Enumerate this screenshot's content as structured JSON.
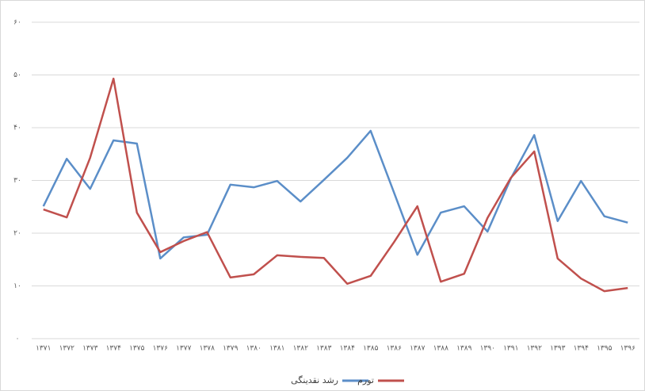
{
  "chart_data": {
    "type": "line",
    "categories": [
      "۱۳۷۱",
      "۱۳۷۲",
      "۱۳۷۳",
      "۱۳۷۴",
      "۱۳۷۵",
      "۱۳۷۶",
      "۱۳۷۷",
      "۱۳۷۸",
      "۱۳۷۹",
      "۱۳۸۰",
      "۱۳۸۱",
      "۱۳۸۲",
      "۱۳۸۳",
      "۱۳۸۴",
      "۱۳۸۵",
      "۱۳۸۶",
      "۱۳۸۷",
      "۱۳۸۸",
      "۱۳۸۹",
      "۱۳۹۰",
      "۱۳۹۱",
      "۱۳۹۲",
      "۱۳۹۳",
      "۱۳۹۴",
      "۱۳۹۵",
      "۱۳۹۶"
    ],
    "series": [
      {
        "name": "رشد نقدینگی",
        "color": "#5b8ec8",
        "values": [
          25.1,
          34.1,
          28.4,
          37.6,
          37.0,
          15.2,
          19.2,
          19.7,
          29.2,
          28.7,
          29.9,
          26.0,
          30.1,
          34.3,
          39.4,
          27.7,
          15.9,
          23.9,
          25.1,
          20.3,
          30.4,
          38.6,
          22.3,
          29.9,
          23.2,
          22.0
        ]
      },
      {
        "name": "تورم",
        "color": "#c0504d",
        "values": [
          24.5,
          23.0,
          34.3,
          49.3,
          23.9,
          16.4,
          18.5,
          20.2,
          11.6,
          12.2,
          15.8,
          15.5,
          15.3,
          10.4,
          11.9,
          18.3,
          25.1,
          10.8,
          12.3,
          22.9,
          30.5,
          35.5,
          15.2,
          11.4,
          9.0,
          9.6
        ]
      }
    ],
    "ylim": [
      0,
      60
    ],
    "yticks": [
      {
        "value": 0,
        "label": "۰"
      },
      {
        "value": 10,
        "label": "۱۰"
      },
      {
        "value": 20,
        "label": "۲۰"
      },
      {
        "value": 30,
        "label": "۳۰"
      },
      {
        "value": 40,
        "label": "۴۰"
      },
      {
        "value": 50,
        "label": "۵۰"
      },
      {
        "value": 60,
        "label": "۶۰"
      }
    ],
    "grid": true
  }
}
